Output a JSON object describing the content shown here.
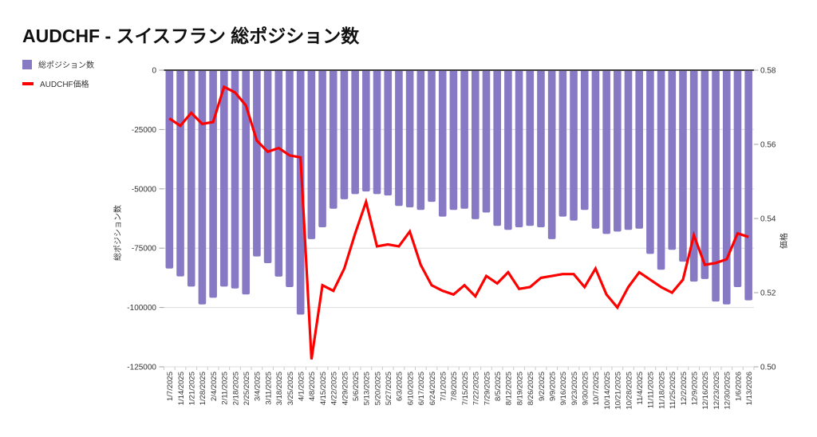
{
  "page": {
    "title": "AUDCHF - スイスフラン 総ポジション数"
  },
  "chart_data": {
    "type": "bar",
    "overlay": "line",
    "title": "AUDCHF - スイスフラン 総ポジション数",
    "categories": [
      "1/7/2025",
      "1/14/2025",
      "1/21/2025",
      "1/28/2025",
      "2/4/2025",
      "2/11/2025",
      "2/18/2025",
      "2/25/2025",
      "3/4/2025",
      "3/11/2025",
      "3/18/2025",
      "3/25/2025",
      "4/1/2025",
      "4/8/2025",
      "4/15/2025",
      "4/22/2025",
      "4/29/2025",
      "5/6/2025",
      "5/13/2025",
      "5/20/2025",
      "5/27/2025",
      "6/3/2025",
      "6/10/2025",
      "6/17/2025",
      "6/24/2025",
      "7/1/2025",
      "7/8/2025",
      "7/15/2025",
      "7/22/2025",
      "7/29/2025",
      "8/5/2025",
      "8/12/2025",
      "8/19/2025",
      "8/26/2025",
      "9/2/2025",
      "9/9/2025",
      "9/16/2025",
      "9/23/2025",
      "9/30/2025",
      "10/7/2025",
      "10/14/2025",
      "10/21/2025",
      "10/28/2025",
      "11/4/2025",
      "11/11/2025",
      "11/18/2025",
      "11/25/2025",
      "12/2/2025",
      "12/9/2025",
      "12/16/2025",
      "12/23/2025",
      "12/30/2025",
      "1/6/2026",
      "1/13/2026"
    ],
    "series": [
      {
        "name": "総ポジション数",
        "type": "bar",
        "yaxis": "left",
        "color": "#8779c4",
        "values": [
          -83600,
          -86900,
          -91200,
          -98700,
          -95900,
          -91200,
          -92000,
          -94500,
          -78500,
          -81300,
          -87000,
          -91400,
          -103000,
          -71200,
          -66200,
          -58400,
          -54400,
          -52200,
          -51100,
          -52200,
          -52800,
          -57200,
          -57800,
          -58900,
          -55500,
          -61700,
          -58900,
          -58400,
          -62800,
          -60000,
          -65600,
          -67300,
          -66200,
          -65600,
          -66200,
          -71200,
          -61700,
          -63400,
          -58900,
          -66800,
          -69000,
          -68000,
          -67300,
          -66800,
          -77400,
          -84100,
          -75700,
          -80700,
          -89100,
          -88000,
          -97500,
          -98700,
          -91400,
          -97000
        ]
      },
      {
        "name": "AUDCHF価格",
        "type": "line",
        "yaxis": "right",
        "color": "#ff0000",
        "values": [
          0.567,
          0.565,
          0.5685,
          0.5655,
          0.566,
          0.5755,
          0.574,
          0.5705,
          0.561,
          0.558,
          0.559,
          0.557,
          0.5565,
          0.502,
          0.522,
          0.5205,
          0.5265,
          0.536,
          0.5445,
          0.5325,
          0.533,
          0.5325,
          0.5365,
          0.5275,
          0.522,
          0.5205,
          0.5195,
          0.522,
          0.519,
          0.5245,
          0.5225,
          0.5255,
          0.521,
          0.5215,
          0.524,
          0.5245,
          0.525,
          0.525,
          0.5215,
          0.5265,
          0.5195,
          0.516,
          0.5215,
          0.5255,
          0.5235,
          0.5215,
          0.52,
          0.5235,
          0.5355,
          0.5275,
          0.528,
          0.529,
          0.536,
          0.535
        ]
      }
    ],
    "left_axis": {
      "label": "総ポジション数",
      "min": -125000,
      "max": 0,
      "tick_values": [
        0,
        -25000,
        -50000,
        -75000,
        -100000,
        -125000
      ],
      "tick_labels": [
        "0",
        "-25000",
        "-50000",
        "-75000",
        "-100000",
        "-125000"
      ]
    },
    "right_axis": {
      "label": "価格",
      "min": 0.5,
      "max": 0.58,
      "tick_values": [
        0.58,
        0.56,
        0.54,
        0.52,
        0.5
      ],
      "tick_labels": [
        "0.58",
        "0.56",
        "0.54",
        "0.52",
        "0.50"
      ]
    },
    "grid": "horizontal",
    "legend_position": "top-left",
    "colors": {
      "grid": "#dcdcdc",
      "zero_line": "#3f3f3f",
      "tick": "#a0a0a0",
      "text": "#333333",
      "title": "#111111"
    }
  }
}
